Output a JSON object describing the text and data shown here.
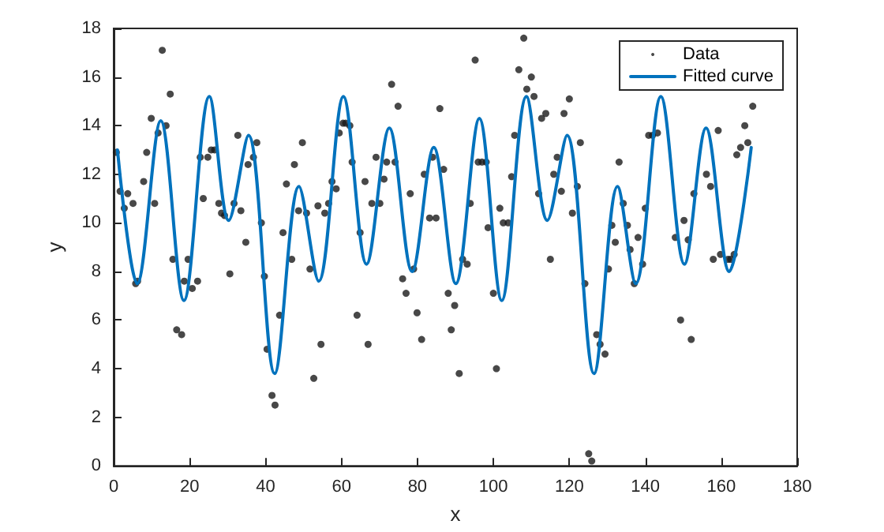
{
  "chart_data": {
    "type": "scatter",
    "xlabel": "x",
    "ylabel": "y",
    "xlim": [
      0,
      180
    ],
    "xticks": [
      0,
      20,
      40,
      60,
      80,
      100,
      120,
      140,
      160,
      180
    ],
    "ylim": [
      0,
      18
    ],
    "yticks": [
      0,
      2,
      4,
      6,
      8,
      10,
      12,
      14,
      16,
      18
    ],
    "grid": false,
    "legend": "top right",
    "series": [
      {
        "name": "Data",
        "marker": "circle",
        "color": "#1a1a1a",
        "x": [
          0.7,
          1.7,
          2.8,
          3.7,
          5.1,
          5.8,
          6.3,
          7.9,
          8.7,
          9.9,
          10.8,
          11.7,
          12.8,
          13.8,
          14.9,
          15.6,
          16.6,
          17.9,
          18.6,
          19.6,
          20.7,
          22.1,
          22.8,
          23.6,
          24.8,
          25.7,
          26.6,
          27.7,
          28.4,
          29.2,
          30.6,
          31.7,
          32.7,
          33.5,
          34.8,
          35.4,
          36.8,
          37.7,
          38.9,
          39.7,
          40.4,
          41.7,
          42.5,
          43.7,
          44.6,
          45.5,
          46.9,
          47.6,
          48.7,
          49.7,
          50.8,
          51.7,
          52.7,
          53.8,
          54.6,
          55.6,
          56.6,
          57.5,
          58.6,
          59.4,
          60.4,
          61.1,
          62.2,
          62.8,
          64.1,
          64.9,
          66.2,
          67.0,
          68.0,
          69.1,
          70.1,
          71.2,
          71.9,
          73.2,
          74.1,
          74.9,
          76.1,
          77.0,
          78.1,
          79.0,
          79.9,
          81.1,
          81.8,
          83.2,
          84.0,
          84.9,
          85.9,
          86.9,
          88.1,
          88.9,
          89.8,
          91.0,
          91.9,
          93.1,
          93.9,
          95.2,
          96.0,
          97.0,
          98.1,
          98.6,
          100.0,
          100.8,
          101.7,
          102.6,
          103.9,
          104.8,
          105.6,
          106.7,
          108.0,
          108.8,
          110.0,
          110.7,
          111.9,
          112.7,
          113.8,
          115.0,
          115.9,
          116.8,
          117.9,
          118.6,
          120.0,
          120.8,
          122.1,
          122.9,
          124.1,
          125.1,
          125.9,
          127.2,
          128.1,
          129.4,
          130.3,
          131.2,
          132.1,
          133.1,
          134.2,
          135.3,
          136.0,
          137.1,
          138.1,
          139.3,
          140.0,
          140.9,
          141.9,
          143.2,
          147.9,
          149.3,
          150.2,
          151.3,
          152.1,
          152.8,
          156.1,
          157.2,
          157.9,
          159.2,
          159.8,
          161.8,
          162.5,
          163.4,
          164.1,
          165.1,
          166.2,
          167.0,
          168.3
        ],
        "values": [
          12.9,
          11.3,
          10.6,
          11.2,
          10.8,
          7.5,
          7.6,
          11.7,
          12.9,
          14.3,
          10.8,
          13.7,
          17.1,
          14.0,
          15.3,
          8.5,
          5.6,
          5.4,
          7.6,
          8.5,
          7.3,
          7.6,
          12.7,
          11.0,
          12.7,
          13.0,
          13.0,
          10.8,
          10.4,
          10.3,
          7.9,
          10.8,
          13.6,
          10.5,
          9.2,
          12.4,
          12.7,
          13.3,
          10.0,
          7.8,
          4.8,
          2.9,
          2.5,
          6.2,
          9.6,
          11.6,
          8.5,
          12.4,
          10.5,
          13.3,
          10.4,
          8.1,
          3.6,
          10.7,
          5.0,
          10.4,
          10.8,
          11.7,
          11.4,
          13.7,
          14.1,
          14.1,
          14.0,
          12.5,
          6.2,
          9.6,
          11.7,
          5.0,
          10.8,
          12.7,
          10.8,
          11.8,
          12.5,
          15.7,
          12.5,
          14.8,
          7.7,
          7.1,
          11.2,
          8.1,
          6.3,
          5.2,
          12.0,
          10.2,
          12.7,
          10.2,
          14.7,
          12.2,
          7.1,
          5.6,
          6.6,
          3.8,
          8.5,
          8.3,
          10.8,
          16.7,
          12.5,
          12.5,
          12.5,
          9.8,
          7.1,
          4.0,
          10.6,
          10.0,
          10.0,
          11.9,
          13.6,
          16.3,
          17.6,
          15.5,
          16.0,
          15.2,
          11.2,
          14.3,
          14.5,
          8.5,
          12.0,
          12.7,
          11.3,
          14.5,
          15.1,
          10.4,
          11.5,
          13.3,
          7.5,
          0.5,
          0.2,
          5.4,
          5.0,
          4.6,
          8.1,
          9.9,
          9.2,
          12.5,
          10.8,
          9.9,
          8.9,
          7.5,
          9.4,
          8.3,
          10.6,
          13.6,
          13.6,
          13.7,
          9.4,
          6.0,
          10.1,
          9.3,
          5.2,
          11.2,
          12.0,
          11.5,
          8.5,
          13.8,
          8.7,
          8.5,
          8.5,
          8.7,
          12.8,
          13.1,
          14.0,
          13.3,
          14.8
        ]
      },
      {
        "name": "Fitted curve",
        "type": "line",
        "marker": "none",
        "line_style": "solid",
        "color": "#0072bd",
        "x": [
          1,
          6.2,
          12.4,
          18.5,
          25.2,
          30.3,
          35.5,
          42.4,
          48.8,
          54,
          60.5,
          66.6,
          72.6,
          78.6,
          84.3,
          90.1,
          96.3,
          102.2,
          108.7,
          114.2,
          119.4,
          126.5,
          132.7,
          137.5,
          144.1,
          150.3,
          156,
          162.1,
          167.9
        ],
        "values": [
          13.0,
          7.5,
          14.2,
          6.8,
          15.2,
          10.1,
          13.6,
          3.8,
          11.5,
          7.6,
          15.2,
          8.3,
          13.9,
          8.0,
          13.1,
          7.5,
          14.3,
          6.8,
          15.2,
          10.1,
          13.6,
          3.8,
          11.5,
          7.5,
          15.2,
          8.3,
          13.9,
          8.0,
          13.1
        ]
      }
    ]
  }
}
